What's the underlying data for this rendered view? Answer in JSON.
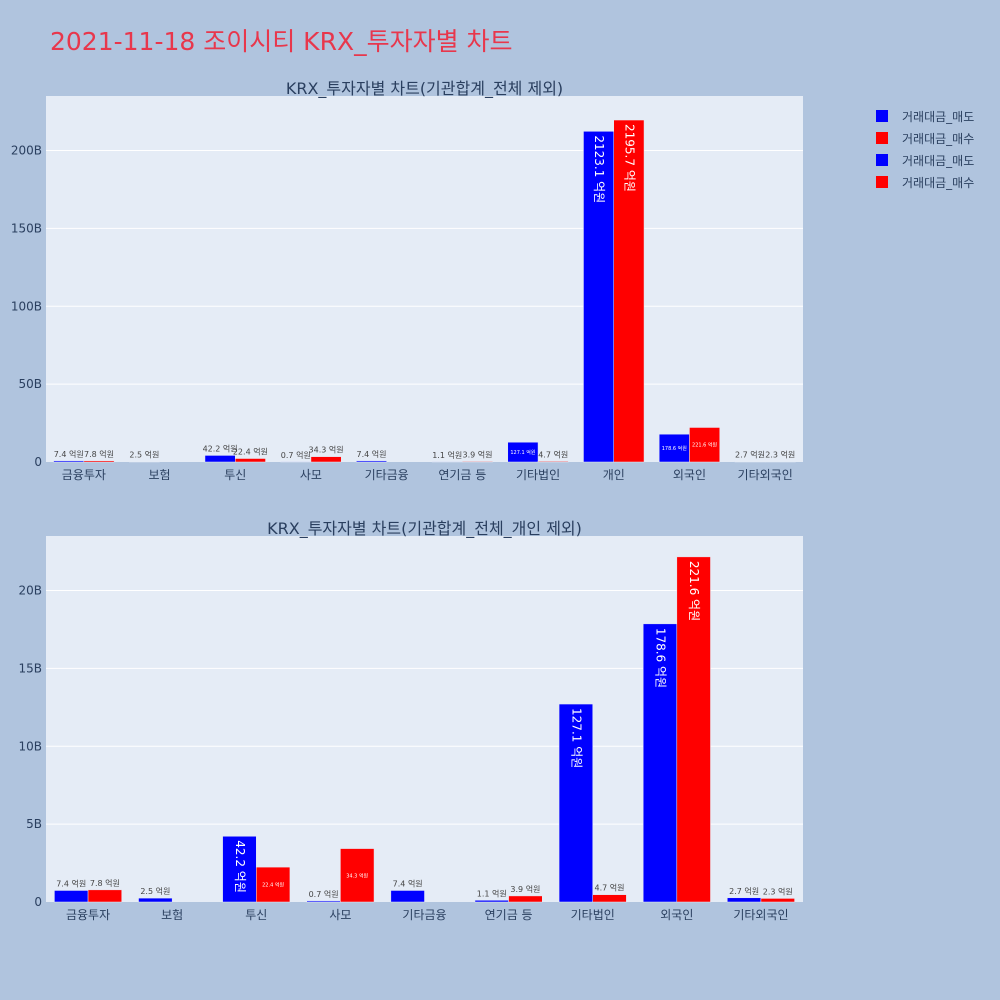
{
  "page": {
    "title": "2021-11-18 조이시티 KRX_투자자별 차트"
  },
  "colors": {
    "sell": "#0000ff",
    "buy": "#ff0000",
    "plot_bg": "#e5ecf6",
    "paper_bg": "#b0c4de",
    "title": "#e8374c"
  },
  "legend": {
    "items": [
      {
        "label": "거래대금_매도",
        "color": "#0000ff"
      },
      {
        "label": "거래대금_매수",
        "color": "#ff0000"
      },
      {
        "label": "거래대금_매도",
        "color": "#0000ff"
      },
      {
        "label": "거래대금_매수",
        "color": "#ff0000"
      }
    ]
  },
  "chart_data": [
    {
      "type": "bar",
      "title": "KRX_투자자별 차트(기관합계_전체 제외)",
      "categories": [
        "금융투자",
        "보험",
        "투신",
        "사모",
        "기타금융",
        "연기금 등",
        "기타법인",
        "개인",
        "외국인",
        "기타외국인"
      ],
      "ylim": [
        0,
        235
      ],
      "yticks": [
        0,
        50,
        100,
        150,
        200
      ],
      "ytick_labels": [
        "0",
        "50B",
        "100B",
        "150B",
        "200B"
      ],
      "series": [
        {
          "name": "거래대금_매도",
          "values": [
            0.74,
            0.25,
            4.22,
            0.07,
            0.74,
            0.11,
            12.71,
            212.31,
            17.86,
            0.27
          ],
          "labels": [
            "7.4 억원",
            "2.5 억원",
            "42.2 억원",
            "0.7 억원",
            "7.4 억원",
            "1.1 억원",
            "127.1 억원",
            "2123.1 억원",
            "178.6 억원",
            "2.7 억원"
          ]
        },
        {
          "name": "거래대금_매수",
          "values": [
            0.78,
            0,
            2.24,
            3.43,
            0,
            0.39,
            0.47,
            219.57,
            22.16,
            0.23
          ],
          "labels": [
            "7.8 억원",
            "",
            "22.4 억원",
            "34.3 억원",
            "",
            "3.9 억원",
            "4.7 억원",
            "2195.7 억원",
            "221.6 억원",
            "2.3 억원"
          ]
        }
      ]
    },
    {
      "type": "bar",
      "title": "KRX_투자자별 차트(기관합계_전체_개인 제외)",
      "categories": [
        "금융투자",
        "보험",
        "투신",
        "사모",
        "기타금융",
        "연기금 등",
        "기타법인",
        "외국인",
        "기타외국인"
      ],
      "ylim": [
        0,
        23.5
      ],
      "yticks": [
        0,
        5,
        10,
        15,
        20
      ],
      "ytick_labels": [
        "0",
        "5B",
        "10B",
        "15B",
        "20B"
      ],
      "series": [
        {
          "name": "거래대금_매도",
          "values": [
            0.74,
            0.25,
            4.22,
            0.07,
            0.74,
            0.11,
            12.71,
            17.86,
            0.27
          ],
          "labels": [
            "7.4 억원",
            "2.5 억원",
            "42.2 억원",
            "0.7 억원",
            "7.4 억원",
            "1.1 억원",
            "127.1 억원",
            "178.6 억원",
            "2.7 억원"
          ]
        },
        {
          "name": "거래대금_매수",
          "values": [
            0.78,
            0,
            2.24,
            3.43,
            0,
            0.39,
            0.47,
            22.16,
            0.23
          ],
          "labels": [
            "7.8 억원",
            "",
            "22.4 억원",
            "34.3 억원",
            "",
            "3.9 억원",
            "4.7 억원",
            "221.6 억원",
            "2.3 억원"
          ]
        }
      ]
    }
  ]
}
